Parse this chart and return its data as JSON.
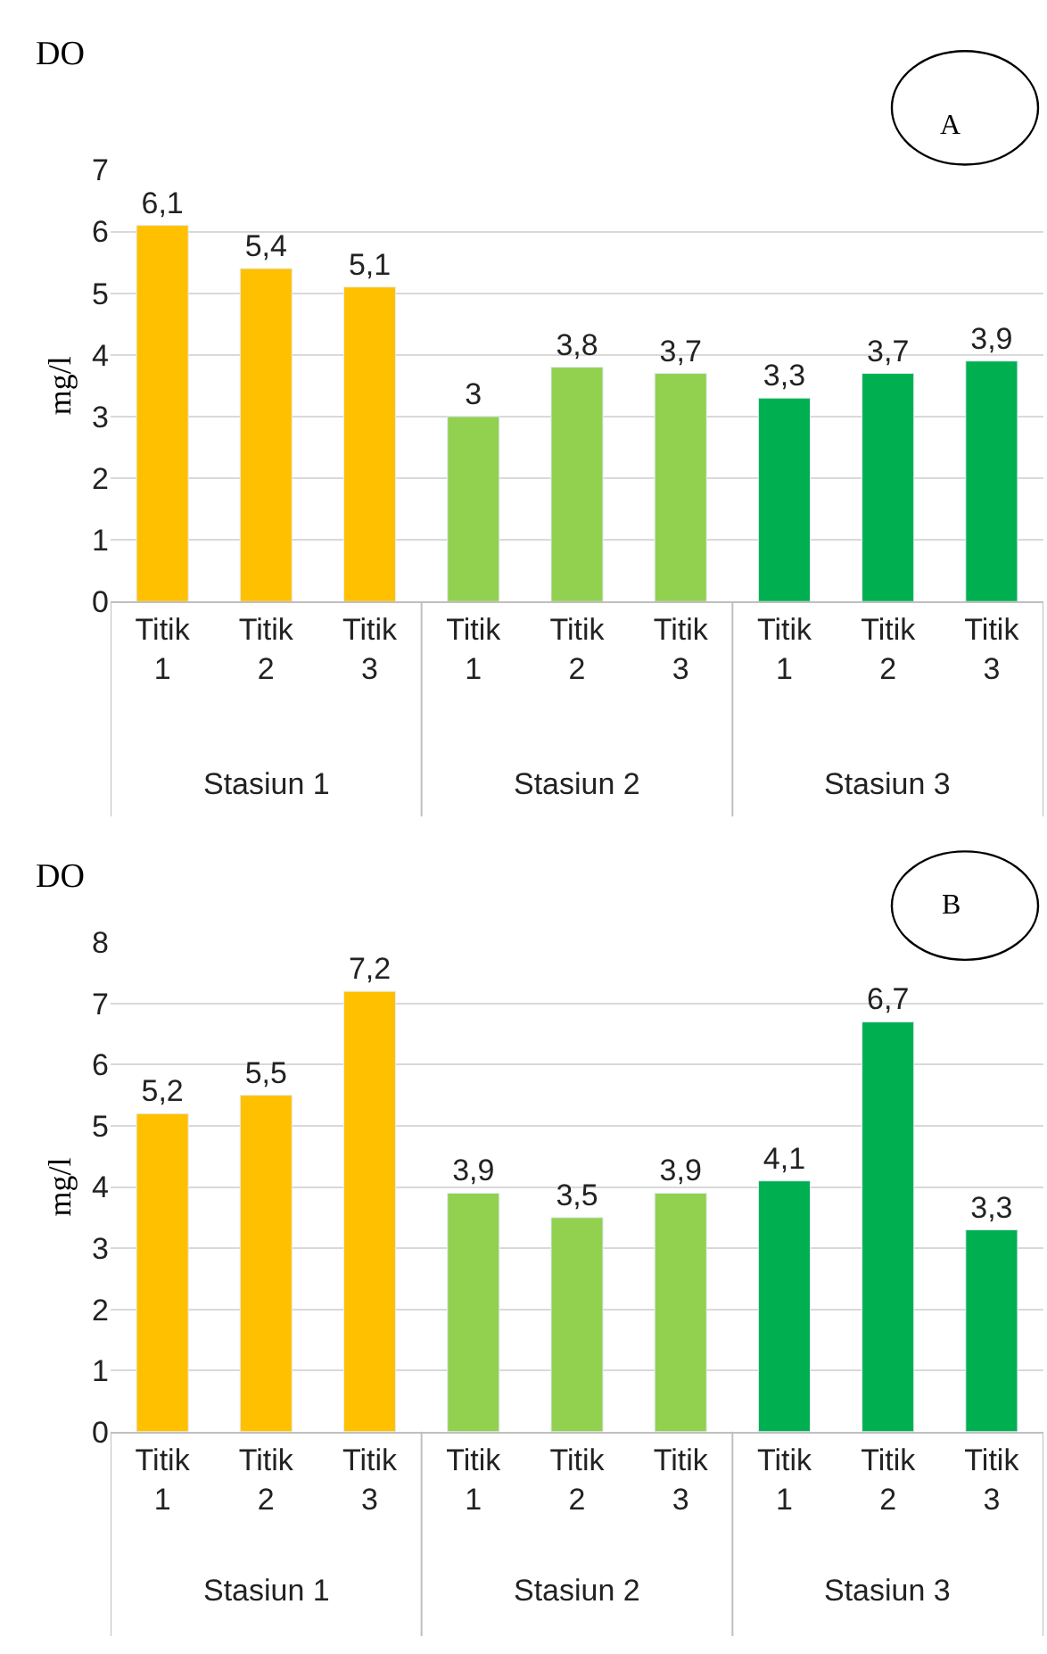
{
  "chart_data": [
    {
      "type": "bar",
      "title": "DO",
      "ylabel": "mg/l",
      "categories": [
        "Titik 1",
        "Titik 2",
        "Titik 3",
        "Titik 1",
        "Titik 2",
        "Titik 3",
        "Titik 1",
        "Titik 2",
        "Titik 3"
      ],
      "values": [
        6.1,
        5.4,
        5.1,
        3,
        3.8,
        3.7,
        3.3,
        3.7,
        3.9
      ],
      "value_labels": [
        "6,1",
        "5,4",
        "5,1",
        "3",
        "3,8",
        "3,7",
        "3,3",
        "3,7",
        "3,9"
      ],
      "colors": [
        "#ffc000",
        "#ffc000",
        "#ffc000",
        "#92d050",
        "#92d050",
        "#92d050",
        "#00b050",
        "#00b050",
        "#00b050"
      ],
      "ylim": [
        0,
        7
      ],
      "yticks": [
        0,
        1,
        2,
        3,
        4,
        5,
        6,
        7
      ],
      "grid": "y",
      "annotations": [
        "A",
        "Stasiun 1",
        "Stasiun 2",
        "Stasiun 3"
      ]
    },
    {
      "type": "bar",
      "title": "DO",
      "ylabel": "mg/l",
      "categories": [
        "Titik 1",
        "Titik 2",
        "Titik 3",
        "Titik 1",
        "Titik 2",
        "Titik 3",
        "Titik 1",
        "Titik 2",
        "Titik 3"
      ],
      "values": [
        5.2,
        5.5,
        7.2,
        3.9,
        3.5,
        3.9,
        4.1,
        6.7,
        3.3
      ],
      "value_labels": [
        "5,2",
        "5,5",
        "7,2",
        "3,9",
        "3,5",
        "3,9",
        "4,1",
        "6,7",
        "3,3"
      ],
      "colors": [
        "#ffc000",
        "#ffc000",
        "#ffc000",
        "#92d050",
        "#92d050",
        "#92d050",
        "#00b050",
        "#00b050",
        "#00b050"
      ],
      "ylim": [
        0,
        8
      ],
      "yticks": [
        0,
        1,
        2,
        3,
        4,
        5,
        6,
        7,
        8
      ],
      "grid": "y",
      "annotations": [
        "B",
        "Stasiun 1",
        "Stasiun 2",
        "Stasiun 3"
      ]
    }
  ]
}
